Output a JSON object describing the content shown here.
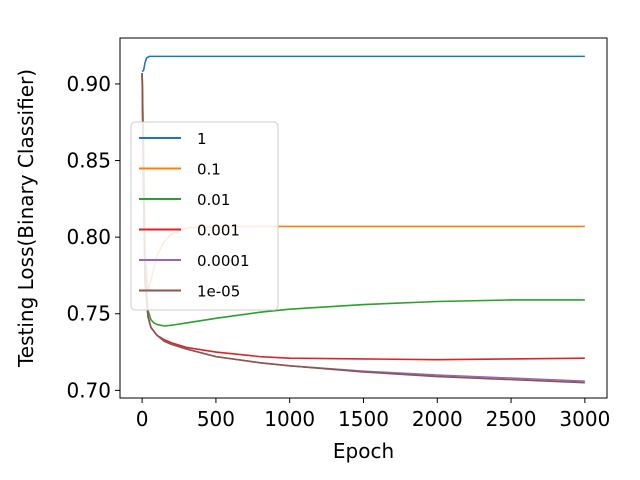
{
  "chart_data": {
    "type": "line",
    "xlabel": "Epoch",
    "ylabel": "Testing Loss(Binary Classifier)",
    "xlim": [
      -150,
      3150
    ],
    "ylim": [
      0.695,
      0.93
    ],
    "xticks": [
      0,
      500,
      1000,
      1500,
      2000,
      2500,
      3000
    ],
    "xtick_labels": [
      "0",
      "500",
      "1000",
      "1500",
      "2000",
      "2500",
      "3000"
    ],
    "yticks": [
      0.7,
      0.75,
      0.8,
      0.85,
      0.9
    ],
    "ytick_labels": [
      "0.70",
      "0.75",
      "0.80",
      "0.85",
      "0.90"
    ],
    "grid": false,
    "legend_position": "center-left",
    "series": [
      {
        "name": "1",
        "color": "#1f77b4",
        "x": [
          0,
          10,
          20,
          30,
          50,
          100,
          500,
          1000,
          2000,
          3000
        ],
        "y": [
          0.908,
          0.909,
          0.914,
          0.917,
          0.918,
          0.918,
          0.918,
          0.918,
          0.918,
          0.918
        ]
      },
      {
        "name": "0.1",
        "color": "#ff7f0e",
        "x": [
          0,
          10,
          20,
          40,
          60,
          100,
          150,
          200,
          300,
          500,
          1000,
          2000,
          3000
        ],
        "y": [
          0.907,
          0.86,
          0.79,
          0.765,
          0.772,
          0.788,
          0.797,
          0.802,
          0.806,
          0.807,
          0.807,
          0.807,
          0.807
        ]
      },
      {
        "name": "0.01",
        "color": "#2ca02c",
        "x": [
          0,
          10,
          20,
          40,
          60,
          80,
          100,
          150,
          200,
          300,
          500,
          800,
          1000,
          1500,
          2000,
          2500,
          3000
        ],
        "y": [
          0.907,
          0.84,
          0.78,
          0.752,
          0.746,
          0.744,
          0.743,
          0.742,
          0.7425,
          0.744,
          0.747,
          0.751,
          0.753,
          0.756,
          0.758,
          0.759,
          0.759
        ]
      },
      {
        "name": "0.001",
        "color": "#d62728",
        "x": [
          0,
          10,
          20,
          40,
          60,
          100,
          150,
          200,
          300,
          500,
          800,
          1000,
          1500,
          2000,
          2500,
          3000
        ],
        "y": [
          0.907,
          0.83,
          0.77,
          0.748,
          0.741,
          0.736,
          0.733,
          0.731,
          0.728,
          0.725,
          0.722,
          0.721,
          0.7205,
          0.72,
          0.7205,
          0.721
        ]
      },
      {
        "name": "0.0001",
        "color": "#9467bd",
        "x": [
          0,
          10,
          20,
          40,
          60,
          100,
          150,
          200,
          300,
          500,
          800,
          1000,
          1500,
          2000,
          2500,
          3000
        ],
        "y": [
          0.907,
          0.83,
          0.77,
          0.748,
          0.741,
          0.736,
          0.732,
          0.73,
          0.727,
          0.722,
          0.718,
          0.716,
          0.7125,
          0.71,
          0.708,
          0.706
        ]
      },
      {
        "name": "1e-05",
        "color": "#8c564b",
        "x": [
          0,
          10,
          20,
          40,
          60,
          100,
          150,
          200,
          300,
          500,
          800,
          1000,
          1500,
          2000,
          2500,
          3000
        ],
        "y": [
          0.907,
          0.83,
          0.77,
          0.748,
          0.741,
          0.736,
          0.732,
          0.73,
          0.727,
          0.722,
          0.718,
          0.716,
          0.712,
          0.709,
          0.707,
          0.705
        ]
      }
    ]
  }
}
